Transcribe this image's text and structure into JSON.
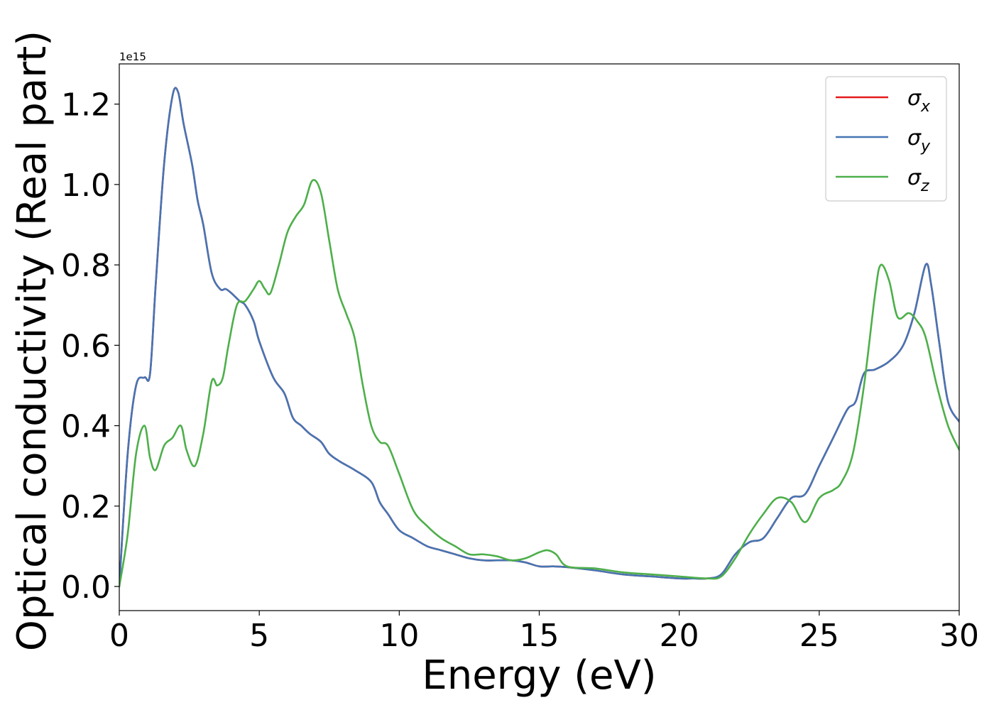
{
  "chart_data": {
    "type": "line",
    "xlabel": "Energy (eV)",
    "ylabel": "Optical conductivity (Real part)",
    "y_offset_text": "1e15",
    "xlim": [
      0,
      30
    ],
    "ylim": [
      -0.06,
      1.3
    ],
    "y_scale_factor": 1000000000000000.0,
    "xticks": [
      0,
      5,
      10,
      15,
      20,
      25,
      30
    ],
    "xtick_labels": [
      "0",
      "5",
      "10",
      "15",
      "20",
      "25",
      "30"
    ],
    "yticks": [
      0.0,
      0.2,
      0.4,
      0.6,
      0.8,
      1.0,
      1.2
    ],
    "ytick_labels": [
      "0.0",
      "0.2",
      "0.4",
      "0.6",
      "0.8",
      "1.0",
      "1.2"
    ],
    "grid": false,
    "legend_position": "top-right",
    "series": [
      {
        "name": "σx",
        "legend_base": "σ",
        "legend_sub": "x",
        "color": "#e41a1c",
        "x": [
          0,
          0.3,
          0.6,
          0.9,
          1.1,
          1.3,
          1.6,
          1.9,
          2.1,
          2.3,
          2.6,
          2.8,
          3.0,
          3.3,
          3.6,
          3.8,
          4.0,
          4.3,
          4.5,
          4.8,
          5.0,
          5.5,
          5.9,
          6.2,
          6.5,
          6.8,
          7.2,
          7.5,
          7.9,
          8.4,
          9.0,
          9.3,
          9.6,
          10.0,
          10.5,
          11.0,
          11.5,
          12.0,
          12.5,
          13.0,
          13.5,
          14.0,
          14.5,
          15.0,
          15.5,
          16.0,
          17.0,
          18.0,
          19.0,
          20.0,
          20.5,
          21.0,
          21.5,
          22.0,
          22.5,
          23.0,
          23.5,
          24.0,
          24.5,
          25.0,
          25.5,
          26.0,
          26.3,
          26.6,
          27.0,
          27.5,
          28.0,
          28.4,
          28.8,
          29.0,
          29.3,
          29.6,
          30.0
        ],
        "values": [
          0.0,
          0.33,
          0.5,
          0.52,
          0.53,
          0.75,
          1.05,
          1.22,
          1.23,
          1.15,
          1.05,
          0.96,
          0.9,
          0.78,
          0.74,
          0.74,
          0.73,
          0.71,
          0.7,
          0.66,
          0.61,
          0.52,
          0.48,
          0.42,
          0.4,
          0.38,
          0.36,
          0.33,
          0.31,
          0.29,
          0.26,
          0.21,
          0.18,
          0.14,
          0.12,
          0.1,
          0.09,
          0.08,
          0.07,
          0.065,
          0.065,
          0.065,
          0.06,
          0.05,
          0.05,
          0.048,
          0.04,
          0.03,
          0.025,
          0.02,
          0.02,
          0.02,
          0.03,
          0.08,
          0.11,
          0.12,
          0.17,
          0.22,
          0.23,
          0.3,
          0.37,
          0.44,
          0.46,
          0.53,
          0.54,
          0.56,
          0.6,
          0.68,
          0.8,
          0.75,
          0.6,
          0.46,
          0.41
        ]
      },
      {
        "name": "σy",
        "legend_base": "σ",
        "legend_sub": "y",
        "color": "#4575b4",
        "x": [
          0,
          0.3,
          0.6,
          0.9,
          1.1,
          1.3,
          1.6,
          1.9,
          2.1,
          2.3,
          2.6,
          2.8,
          3.0,
          3.3,
          3.6,
          3.8,
          4.0,
          4.3,
          4.5,
          4.8,
          5.0,
          5.5,
          5.9,
          6.2,
          6.5,
          6.8,
          7.2,
          7.5,
          7.9,
          8.4,
          9.0,
          9.3,
          9.6,
          10.0,
          10.5,
          11.0,
          11.5,
          12.0,
          12.5,
          13.0,
          13.5,
          14.0,
          14.5,
          15.0,
          15.5,
          16.0,
          17.0,
          18.0,
          19.0,
          20.0,
          20.5,
          21.0,
          21.5,
          22.0,
          22.5,
          23.0,
          23.5,
          24.0,
          24.5,
          25.0,
          25.5,
          26.0,
          26.3,
          26.6,
          27.0,
          27.5,
          28.0,
          28.4,
          28.8,
          29.0,
          29.3,
          29.6,
          30.0
        ],
        "values": [
          0.0,
          0.33,
          0.5,
          0.52,
          0.53,
          0.75,
          1.05,
          1.22,
          1.23,
          1.15,
          1.05,
          0.96,
          0.9,
          0.78,
          0.74,
          0.74,
          0.73,
          0.71,
          0.7,
          0.66,
          0.61,
          0.52,
          0.48,
          0.42,
          0.4,
          0.38,
          0.36,
          0.33,
          0.31,
          0.29,
          0.26,
          0.21,
          0.18,
          0.14,
          0.12,
          0.1,
          0.09,
          0.08,
          0.07,
          0.065,
          0.065,
          0.065,
          0.06,
          0.05,
          0.05,
          0.048,
          0.04,
          0.03,
          0.025,
          0.02,
          0.02,
          0.02,
          0.03,
          0.08,
          0.11,
          0.12,
          0.17,
          0.22,
          0.23,
          0.3,
          0.37,
          0.44,
          0.46,
          0.53,
          0.54,
          0.56,
          0.6,
          0.68,
          0.8,
          0.75,
          0.6,
          0.46,
          0.41
        ]
      },
      {
        "name": "σz",
        "legend_base": "σ",
        "legend_sub": "z",
        "color": "#4daf4a",
        "x": [
          0,
          0.3,
          0.6,
          0.9,
          1.1,
          1.3,
          1.6,
          1.9,
          2.2,
          2.4,
          2.7,
          3.0,
          3.3,
          3.5,
          3.7,
          3.9,
          4.2,
          4.5,
          4.8,
          5.0,
          5.2,
          5.4,
          5.7,
          6.0,
          6.3,
          6.6,
          6.9,
          7.2,
          7.5,
          7.8,
          8.1,
          8.4,
          8.7,
          9.0,
          9.3,
          9.6,
          10.0,
          10.5,
          11.0,
          11.5,
          12.0,
          12.5,
          13.0,
          13.5,
          14.0,
          14.5,
          15.0,
          15.3,
          15.6,
          16.0,
          17.0,
          18.0,
          19.0,
          20.0,
          21.0,
          21.5,
          22.0,
          22.5,
          23.0,
          23.5,
          24.0,
          24.5,
          25.0,
          25.5,
          25.8,
          26.2,
          26.6,
          27.0,
          27.2,
          27.5,
          27.8,
          28.2,
          28.5,
          28.8,
          29.2,
          29.6,
          30.0
        ],
        "values": [
          0.0,
          0.13,
          0.33,
          0.4,
          0.32,
          0.29,
          0.35,
          0.37,
          0.4,
          0.34,
          0.3,
          0.38,
          0.51,
          0.5,
          0.52,
          0.6,
          0.7,
          0.71,
          0.74,
          0.76,
          0.74,
          0.73,
          0.8,
          0.88,
          0.92,
          0.95,
          1.01,
          0.98,
          0.86,
          0.74,
          0.68,
          0.62,
          0.5,
          0.4,
          0.36,
          0.35,
          0.28,
          0.19,
          0.15,
          0.12,
          0.1,
          0.08,
          0.08,
          0.075,
          0.065,
          0.07,
          0.085,
          0.09,
          0.08,
          0.05,
          0.045,
          0.035,
          0.03,
          0.025,
          0.02,
          0.025,
          0.07,
          0.13,
          0.18,
          0.22,
          0.21,
          0.16,
          0.22,
          0.24,
          0.26,
          0.33,
          0.5,
          0.73,
          0.8,
          0.76,
          0.67,
          0.68,
          0.66,
          0.62,
          0.5,
          0.4,
          0.34
        ]
      }
    ]
  }
}
